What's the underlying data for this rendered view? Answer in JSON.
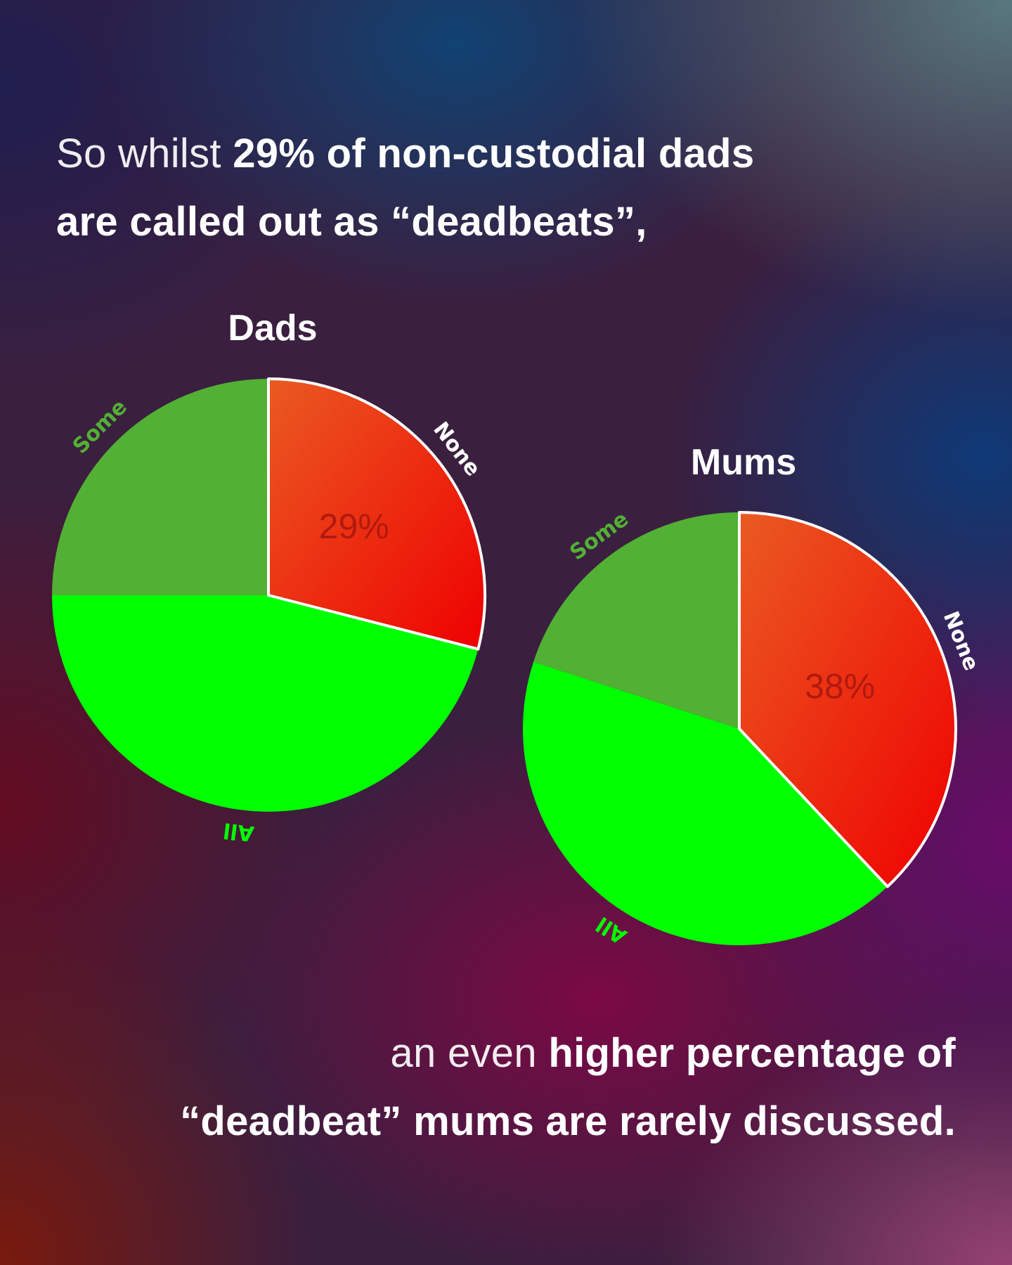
{
  "headline": {
    "l1_light": "So whilst ",
    "l1_bold": "29% of non-custodial dads",
    "l2_bold": "are called out as “deadbeats”,"
  },
  "footer": {
    "l1_light": "an even ",
    "l1_bold": "higher percentage of",
    "l2_bold": "“deadbeat” mums are rarely discussed."
  },
  "colors": {
    "none_start": "#ea5a22",
    "none_end": "#ef0000",
    "some": "#52b034",
    "all": "#00ff00",
    "some_label": "#52b034",
    "all_label": "#00ff00",
    "none_label": "#ffffff",
    "pct_label": "#b01a10"
  },
  "chart_data": [
    {
      "type": "pie",
      "title": "Dads",
      "slices": [
        {
          "label": "None",
          "value": 29,
          "value_label": "29%"
        },
        {
          "label": "All",
          "value": 46
        },
        {
          "label": "Some",
          "value": 25
        }
      ]
    },
    {
      "type": "pie",
      "title": "Mums",
      "slices": [
        {
          "label": "None",
          "value": 38,
          "value_label": "38%"
        },
        {
          "label": "All",
          "value": 42
        },
        {
          "label": "Some",
          "value": 20
        }
      ]
    }
  ]
}
